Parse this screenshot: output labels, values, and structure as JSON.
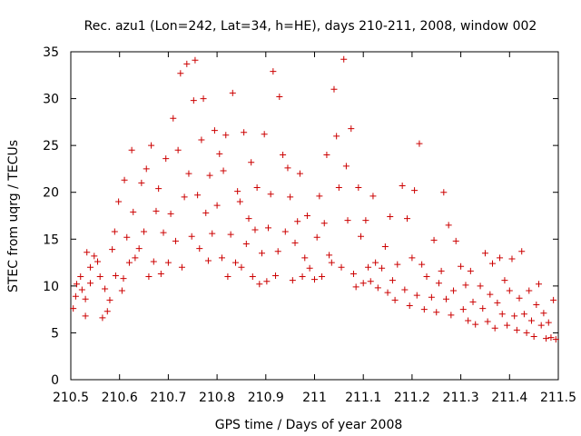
{
  "chart_data": {
    "type": "scatter",
    "title": "Rec. azu1 (Lon=242, Lat=34, h=HE), days 210-211, 2008, window 002",
    "xlabel": "GPS time / Days of year 2008",
    "ylabel": "STEC from uqrg / TECUs",
    "xlim": [
      210.5,
      211.5
    ],
    "ylim": [
      0,
      35
    ],
    "xticks": [
      "210.5",
      "210.6",
      "210.7",
      "210.8",
      "210.9",
      "211",
      "211.1",
      "211.2",
      "211.3",
      "211.4",
      "211.5"
    ],
    "yticks": [
      "0",
      "5",
      "10",
      "15",
      "20",
      "25",
      "30",
      "35"
    ],
    "grid": false,
    "legend": "none",
    "marker": "plus",
    "color": "#cc0000",
    "points": [
      [
        210.505,
        7.6
      ],
      [
        210.51,
        8.9
      ],
      [
        210.512,
        10.2
      ],
      [
        210.52,
        11.0
      ],
      [
        210.523,
        9.6
      ],
      [
        210.53,
        8.6
      ],
      [
        210.53,
        6.8
      ],
      [
        210.533,
        13.6
      ],
      [
        210.54,
        12.0
      ],
      [
        210.54,
        10.3
      ],
      [
        210.548,
        13.2
      ],
      [
        210.555,
        12.6
      ],
      [
        210.56,
        11.0
      ],
      [
        210.565,
        6.6
      ],
      [
        210.57,
        9.7
      ],
      [
        210.575,
        7.3
      ],
      [
        210.58,
        8.5
      ],
      [
        210.585,
        13.9
      ],
      [
        210.59,
        15.8
      ],
      [
        210.592,
        11.1
      ],
      [
        210.598,
        19.0
      ],
      [
        210.605,
        9.5
      ],
      [
        210.608,
        10.8
      ],
      [
        210.61,
        21.3
      ],
      [
        210.615,
        15.2
      ],
      [
        210.62,
        12.5
      ],
      [
        210.625,
        24.5
      ],
      [
        210.628,
        17.9
      ],
      [
        210.632,
        13.0
      ],
      [
        210.64,
        14.0
      ],
      [
        210.645,
        21.0
      ],
      [
        210.65,
        15.8
      ],
      [
        210.655,
        22.5
      ],
      [
        210.66,
        11.0
      ],
      [
        210.665,
        25.0
      ],
      [
        210.67,
        12.6
      ],
      [
        210.675,
        18.0
      ],
      [
        210.68,
        20.4
      ],
      [
        210.685,
        11.3
      ],
      [
        210.69,
        15.7
      ],
      [
        210.695,
        23.6
      ],
      [
        210.7,
        12.5
      ],
      [
        210.705,
        17.7
      ],
      [
        210.71,
        27.9
      ],
      [
        210.715,
        14.8
      ],
      [
        210.72,
        24.5
      ],
      [
        210.725,
        32.7
      ],
      [
        210.728,
        12.0
      ],
      [
        210.733,
        19.5
      ],
      [
        210.738,
        33.7
      ],
      [
        210.742,
        22.0
      ],
      [
        210.748,
        15.3
      ],
      [
        210.752,
        29.8
      ],
      [
        210.755,
        34.1
      ],
      [
        210.76,
        19.7
      ],
      [
        210.764,
        14.0
      ],
      [
        210.768,
        25.6
      ],
      [
        210.772,
        30.0
      ],
      [
        210.777,
        17.8
      ],
      [
        210.782,
        12.7
      ],
      [
        210.785,
        21.8
      ],
      [
        210.79,
        15.6
      ],
      [
        210.795,
        26.6
      ],
      [
        210.8,
        18.6
      ],
      [
        210.805,
        24.1
      ],
      [
        210.81,
        13.0
      ],
      [
        210.813,
        22.3
      ],
      [
        210.818,
        26.1
      ],
      [
        210.822,
        11.0
      ],
      [
        210.828,
        15.5
      ],
      [
        210.832,
        30.6
      ],
      [
        210.838,
        12.5
      ],
      [
        210.842,
        20.1
      ],
      [
        210.847,
        19.0
      ],
      [
        210.85,
        12.0
      ],
      [
        210.855,
        26.4
      ],
      [
        210.86,
        14.5
      ],
      [
        210.865,
        17.2
      ],
      [
        210.87,
        23.2
      ],
      [
        210.873,
        11.0
      ],
      [
        210.878,
        16.0
      ],
      [
        210.882,
        20.5
      ],
      [
        210.887,
        10.2
      ],
      [
        210.892,
        13.5
      ],
      [
        210.897,
        26.2
      ],
      [
        210.902,
        10.5
      ],
      [
        210.905,
        16.2
      ],
      [
        210.91,
        19.8
      ],
      [
        210.915,
        32.9
      ],
      [
        210.92,
        11.1
      ],
      [
        210.925,
        13.7
      ],
      [
        210.928,
        30.2
      ],
      [
        210.935,
        24.0
      ],
      [
        210.94,
        15.8
      ],
      [
        210.945,
        22.6
      ],
      [
        210.95,
        19.5
      ],
      [
        210.955,
        10.6
      ],
      [
        210.96,
        14.6
      ],
      [
        210.965,
        16.9
      ],
      [
        210.97,
        22.0
      ],
      [
        210.975,
        11.0
      ],
      [
        210.98,
        13.0
      ],
      [
        210.985,
        17.5
      ],
      [
        210.99,
        11.9
      ],
      [
        211.0,
        10.7
      ],
      [
        211.005,
        15.2
      ],
      [
        211.01,
        19.6
      ],
      [
        211.015,
        11.0
      ],
      [
        211.02,
        16.7
      ],
      [
        211.025,
        24.0
      ],
      [
        211.03,
        13.3
      ],
      [
        211.035,
        12.5
      ],
      [
        211.04,
        31.0
      ],
      [
        211.045,
        26.0
      ],
      [
        211.05,
        20.5
      ],
      [
        211.055,
        12.0
      ],
      [
        211.06,
        34.2
      ],
      [
        211.065,
        22.8
      ],
      [
        211.068,
        17.0
      ],
      [
        211.075,
        26.8
      ],
      [
        211.08,
        11.3
      ],
      [
        211.085,
        9.9
      ],
      [
        211.09,
        20.5
      ],
      [
        211.095,
        15.3
      ],
      [
        211.1,
        10.3
      ],
      [
        211.105,
        17.0
      ],
      [
        211.11,
        12.0
      ],
      [
        211.115,
        10.5
      ],
      [
        211.12,
        19.6
      ],
      [
        211.125,
        12.5
      ],
      [
        211.13,
        9.8
      ],
      [
        211.138,
        11.9
      ],
      [
        211.145,
        14.2
      ],
      [
        211.15,
        9.3
      ],
      [
        211.155,
        17.4
      ],
      [
        211.16,
        10.6
      ],
      [
        211.165,
        8.5
      ],
      [
        211.17,
        12.3
      ],
      [
        211.18,
        20.7
      ],
      [
        211.185,
        9.6
      ],
      [
        211.19,
        17.2
      ],
      [
        211.195,
        7.9
      ],
      [
        211.2,
        13.0
      ],
      [
        211.205,
        20.2
      ],
      [
        211.21,
        9.0
      ],
      [
        211.215,
        25.2
      ],
      [
        211.22,
        12.3
      ],
      [
        211.225,
        7.5
      ],
      [
        211.23,
        11.0
      ],
      [
        211.24,
        8.8
      ],
      [
        211.245,
        14.9
      ],
      [
        211.25,
        7.2
      ],
      [
        211.255,
        10.3
      ],
      [
        211.26,
        11.6
      ],
      [
        211.265,
        20.0
      ],
      [
        211.27,
        8.6
      ],
      [
        211.275,
        16.5
      ],
      [
        211.28,
        6.9
      ],
      [
        211.285,
        9.5
      ],
      [
        211.29,
        14.8
      ],
      [
        211.3,
        12.1
      ],
      [
        211.305,
        7.5
      ],
      [
        211.31,
        10.1
      ],
      [
        211.315,
        6.3
      ],
      [
        211.32,
        11.6
      ],
      [
        211.325,
        8.3
      ],
      [
        211.33,
        5.9
      ],
      [
        211.34,
        10.0
      ],
      [
        211.345,
        7.6
      ],
      [
        211.35,
        13.5
      ],
      [
        211.355,
        6.2
      ],
      [
        211.36,
        9.1
      ],
      [
        211.365,
        12.4
      ],
      [
        211.37,
        5.5
      ],
      [
        211.375,
        8.2
      ],
      [
        211.38,
        13.0
      ],
      [
        211.385,
        7.0
      ],
      [
        211.39,
        10.6
      ],
      [
        211.395,
        5.8
      ],
      [
        211.4,
        9.5
      ],
      [
        211.405,
        12.9
      ],
      [
        211.41,
        6.8
      ],
      [
        211.415,
        5.3
      ],
      [
        211.42,
        8.7
      ],
      [
        211.425,
        13.7
      ],
      [
        211.43,
        7.0
      ],
      [
        211.435,
        5.0
      ],
      [
        211.44,
        9.5
      ],
      [
        211.445,
        6.3
      ],
      [
        211.45,
        4.6
      ],
      [
        211.455,
        8.0
      ],
      [
        211.46,
        10.2
      ],
      [
        211.465,
        5.8
      ],
      [
        211.47,
        7.1
      ],
      [
        211.475,
        4.4
      ],
      [
        211.48,
        6.1
      ],
      [
        211.485,
        4.5
      ],
      [
        211.49,
        8.5
      ],
      [
        211.495,
        4.3
      ]
    ]
  }
}
